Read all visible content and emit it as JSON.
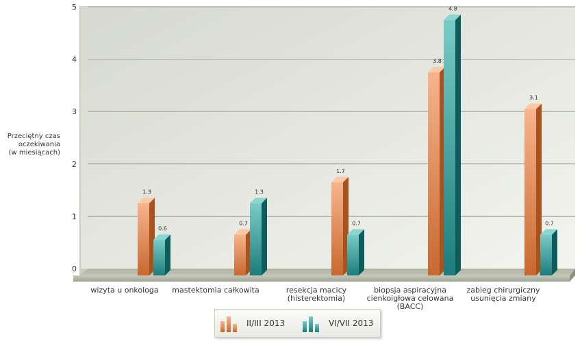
{
  "chart_data": {
    "type": "bar",
    "ylabel_lines": [
      "Przeciętny czas",
      "oczekiwania",
      "(w miesiącach)"
    ],
    "ylim": [
      0,
      5
    ],
    "yticks": [
      "0",
      "1",
      "2",
      "3",
      "4",
      "5"
    ],
    "grid": true,
    "legend_position": "bottom-center",
    "categories": [
      [
        "wizyta u onkologa"
      ],
      [
        "mastektomia całkowita"
      ],
      [
        "resekcja macicy",
        "(histerektomia)"
      ],
      [
        "biopsja aspiracyjna",
        "cienkoigłowa celowana",
        "(BACC)"
      ],
      [
        "zabieg chirurgiczny",
        "usunięcia zmiany"
      ]
    ],
    "series": [
      {
        "name": "II/III 2013",
        "values": [
          1.3,
          0.7,
          1.7,
          3.8,
          3.1
        ],
        "labels": [
          "1.3",
          "0.7",
          "1.7",
          "3.8",
          "3.1"
        ],
        "color": "#e8875a"
      },
      {
        "name": "VI/VII 2013",
        "values": [
          0.6,
          1.3,
          0.7,
          4.8,
          0.7
        ],
        "labels": [
          "0.6",
          "1.3",
          "0.7",
          "4.8",
          "0.7"
        ],
        "color": "#2a9a9a"
      }
    ]
  }
}
